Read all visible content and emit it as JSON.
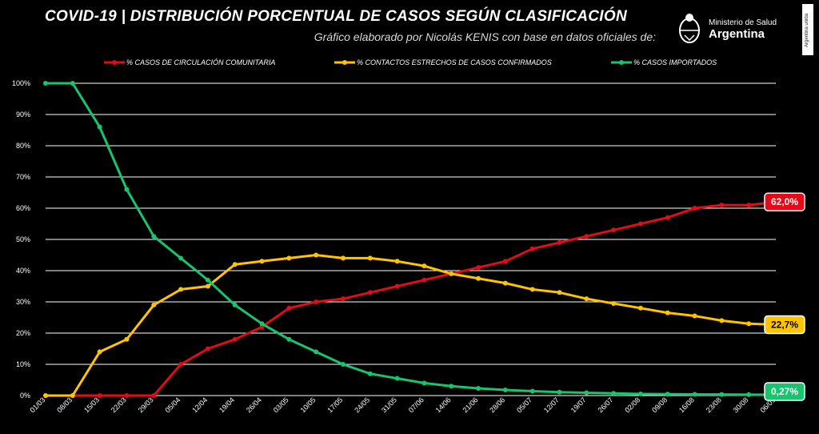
{
  "header": {
    "title": "COVID-19  |  DISTRIBUCIÓN PORCENTUAL DE CASOS SEGÚN CLASIFICACIÓN",
    "subtitle": "Gráfico elaborado por Nicolás KENIS con base en datos oficiales de:"
  },
  "logo": {
    "line1": "Ministerio de Salud",
    "line2": "Argentina",
    "side_tag": "Argentina unida"
  },
  "colors": {
    "background": "#000000",
    "comunitaria": "#e30b17",
    "contactos": "#ffc400",
    "importados": "#19c46e",
    "grid": "#ffffff"
  },
  "chart_data": {
    "type": "line",
    "title": "COVID-19  |  DISTRIBUCIÓN PORCENTUAL DE CASOS SEGÚN CLASIFICACIÓN",
    "xlabel": "",
    "ylabel": "",
    "ylim": [
      0,
      100
    ],
    "yticks": [
      "0%",
      "10%",
      "20%",
      "30%",
      "40%",
      "50%",
      "60%",
      "70%",
      "80%",
      "90%",
      "100%"
    ],
    "grid": true,
    "legend_position": "top",
    "categories": [
      "01/03",
      "08/03",
      "15/03",
      "22/03",
      "29/03",
      "05/04",
      "12/04",
      "19/04",
      "26/04",
      "03/05",
      "10/05",
      "17/05",
      "24/05",
      "31/05",
      "07/06",
      "14/06",
      "21/06",
      "28/06",
      "05/07",
      "12/07",
      "19/07",
      "26/07",
      "02/08",
      "09/08",
      "16/08",
      "23/08",
      "30/08",
      "06/09"
    ],
    "series": [
      {
        "name": "% CASOS DE CIRCULACIÓN COMUNITARIA",
        "color": "#e30b17",
        "values": [
          0,
          0,
          0,
          0,
          0,
          10,
          15,
          18,
          22,
          28,
          30,
          31,
          33,
          35,
          37,
          39,
          41,
          43,
          47,
          49,
          51,
          53,
          55,
          57,
          60,
          61,
          61,
          62
        ]
      },
      {
        "name": "% CONTACTOS ESTRECHOS DE CASOS CONFIRMADOS",
        "color": "#ffc400",
        "values": [
          0,
          0,
          14,
          18,
          29,
          34,
          35,
          42,
          43,
          44,
          45,
          44,
          44,
          43,
          41.5,
          39,
          37.5,
          36,
          34,
          33,
          31,
          29.5,
          28,
          26.5,
          25.5,
          24,
          23,
          22.7
        ]
      },
      {
        "name": "% CASOS IMPORTADOS",
        "color": "#19c46e",
        "values": [
          100,
          100,
          86,
          66,
          51,
          44,
          37,
          29,
          23,
          18,
          14,
          10,
          7,
          5.5,
          4,
          3,
          2.3,
          1.8,
          1.4,
          1.1,
          0.9,
          0.7,
          0.5,
          0.45,
          0.4,
          0.35,
          0.3,
          0.27
        ]
      }
    ],
    "end_labels": [
      {
        "series": 0,
        "text": "62,0%"
      },
      {
        "series": 1,
        "text": "22,7%"
      },
      {
        "series": 2,
        "text": "0,27%"
      }
    ]
  }
}
